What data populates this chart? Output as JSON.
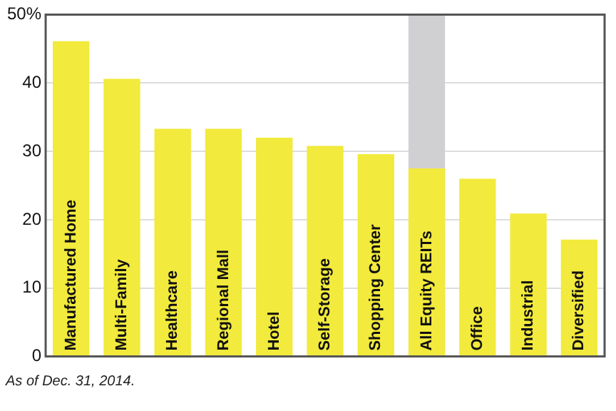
{
  "chart_data": {
    "type": "bar",
    "categories": [
      "Manufactured Home",
      "Multi-Family",
      "Healthcare",
      "Regional Mall",
      "Hotel",
      "Self-Storage",
      "Shopping Center",
      "All Equity REITs",
      "Office",
      "Industrial",
      "Diversified"
    ],
    "values": [
      46.1,
      40.6,
      33.3,
      33.3,
      32.0,
      30.8,
      29.6,
      27.5,
      26.0,
      20.9,
      17.1
    ],
    "color": "#f2ea3c",
    "ylim": [
      0,
      50
    ],
    "yticks": [
      0,
      10,
      20,
      30,
      40,
      {
        "value": 50,
        "label": "50%"
      }
    ],
    "grid": "y",
    "bands": [
      {
        "axis": "x",
        "from": "All Equity REITs",
        "to": "All Equity REITs",
        "color": "#d0d0d2"
      }
    ],
    "annotations": [
      "As of Dec. 31, 2014."
    ]
  }
}
